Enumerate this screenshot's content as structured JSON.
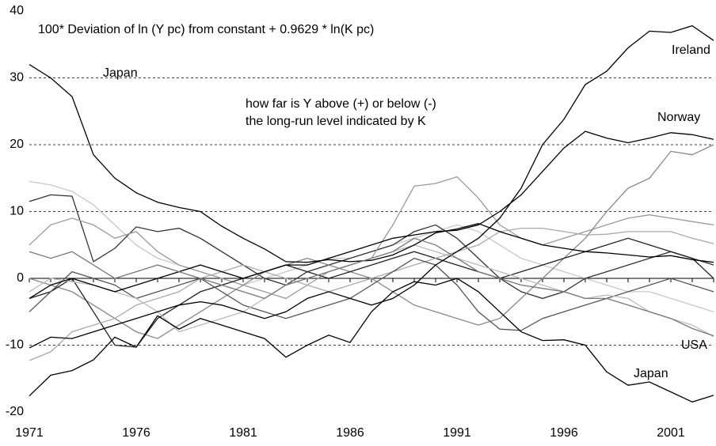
{
  "chart_data": {
    "type": "line",
    "title": "100* Deviation of ln (Y pc) from constant + 0.9629 * ln(K pc)",
    "annotation": [
      "how far is Y above (+) or below (-)",
      "the long-run level indicated by K"
    ],
    "x": [
      1971,
      1972,
      1973,
      1974,
      1975,
      1976,
      1977,
      1978,
      1979,
      1980,
      1981,
      1982,
      1983,
      1984,
      1985,
      1986,
      1987,
      1988,
      1989,
      1990,
      1991,
      1992,
      1993,
      1994,
      1995,
      1996,
      1997,
      1998,
      1999,
      2000,
      2001,
      2002,
      2003
    ],
    "xlim": [
      1971,
      2003
    ],
    "xticks": [
      1971,
      1976,
      1981,
      1986,
      1991,
      1996,
      2001
    ],
    "ylim": [
      -20,
      40
    ],
    "yticks": [
      -20,
      -10,
      0,
      10,
      20,
      30,
      40
    ],
    "grid": true,
    "series": [
      {
        "color": "#c8c8c8",
        "values": [
          14.5,
          14,
          13,
          11,
          8,
          5,
          3,
          2,
          1,
          0,
          -1,
          0,
          1,
          2,
          3,
          3,
          4,
          5,
          6,
          7,
          8,
          7,
          5,
          3,
          2,
          1,
          0,
          -1,
          -2,
          -2,
          -3,
          -4,
          -5
        ]
      },
      {
        "color": "#333333",
        "values": [
          11.5,
          12.5,
          12.3,
          2.5,
          4.5,
          7.7,
          7,
          7.5,
          6,
          4,
          2,
          0,
          -1,
          1,
          2,
          3,
          4,
          5,
          7,
          8,
          6,
          3,
          0,
          -2,
          -3,
          -2,
          0,
          1,
          2,
          3,
          4,
          3,
          2
        ]
      },
      {
        "color": "#999999",
        "values": [
          5,
          8,
          9,
          8,
          6,
          7,
          4,
          2,
          1,
          0,
          -1,
          -2,
          -3,
          -1,
          1,
          2,
          3,
          8,
          13.8,
          14.2,
          15.2,
          12,
          8,
          6,
          5,
          6,
          7,
          8,
          9,
          9.5,
          9,
          8.5,
          8
        ]
      },
      {
        "color": "#888888",
        "values": [
          0,
          -1,
          -2,
          -4,
          -6,
          -8,
          -9,
          -7,
          -5,
          -3,
          -1,
          1,
          2,
          3,
          2,
          1,
          0,
          -2,
          -4,
          -5,
          -6,
          -7,
          -6,
          -3,
          0,
          3,
          6,
          10,
          13.5,
          15,
          19,
          18.5,
          20
        ]
      },
      {
        "color": "#222222",
        "values": [
          -3,
          -2,
          0,
          -5,
          -10,
          -10.3,
          -6,
          -4,
          -2,
          -1,
          0,
          1,
          2,
          1,
          0,
          1,
          2,
          3,
          4,
          3,
          2,
          1,
          0,
          1,
          2,
          3,
          4,
          5,
          6,
          5,
          4,
          3,
          0
        ]
      },
      {
        "color": "#aaaaaa",
        "values": [
          -12.3,
          -11,
          -8,
          -7,
          -6,
          -4,
          -3,
          -2,
          0,
          1,
          2,
          1,
          0,
          -1,
          -2,
          -1,
          0,
          1,
          2,
          3,
          4,
          5,
          7,
          7.5,
          7.5,
          7,
          6.5,
          6.6,
          7,
          7,
          7,
          6,
          5.2
        ]
      },
      {
        "color": "#555555",
        "values": [
          -5,
          -2,
          1,
          0,
          -1,
          -3,
          -2,
          -1,
          0,
          -2,
          -4,
          -5,
          -6,
          -5,
          -4,
          -3,
          -1,
          1,
          3,
          2,
          -1,
          -5,
          -7.6,
          -7.8,
          -6,
          -5,
          -4,
          -3,
          -2,
          -1,
          0,
          -1,
          -2
        ]
      },
      {
        "color": "#bbbbbb",
        "values": [
          -2,
          0,
          -0.5,
          -1,
          -2,
          -3,
          -5,
          -8,
          -7,
          -6,
          -5,
          -3,
          -1,
          0,
          1,
          2,
          3,
          4,
          5,
          4,
          3,
          2,
          1,
          0,
          -1,
          -2,
          -3,
          -2.5,
          -3,
          -5,
          -6,
          -7,
          -8.7
        ]
      },
      {
        "name": "Japan",
        "color": "#000000",
        "values": [
          32,
          30,
          27.2,
          18.5,
          15,
          12.8,
          11.4,
          10.6,
          10,
          7.8,
          6,
          4.4,
          2.5,
          2.4,
          2.8,
          2.5,
          2.7,
          3.5,
          5,
          6.8,
          7.4,
          8.2,
          7,
          6,
          5,
          4.5,
          4,
          3.8,
          3.5,
          3.2,
          3.4,
          2.8,
          2.4
        ]
      },
      {
        "name": "Ireland",
        "color": "#000000",
        "values": [
          -10.4,
          -8.8,
          -9,
          -8,
          -7,
          -6,
          -5,
          -4,
          -3.5,
          -4,
          -5,
          -6,
          -5,
          -3,
          -2,
          -3,
          -4,
          -3,
          -1,
          2,
          4,
          6,
          9,
          13.5,
          20,
          23.8,
          29,
          31,
          34.5,
          37,
          36.8,
          37.8,
          35.6
        ]
      },
      {
        "name": "Norway",
        "color": "#000000",
        "values": [
          -3,
          -1,
          0,
          -1,
          -2,
          -1,
          0,
          1,
          2,
          1,
          0,
          1,
          2,
          2,
          3,
          4,
          5,
          6,
          6.5,
          7,
          7.2,
          8,
          10,
          12.5,
          16,
          19.5,
          22,
          21,
          20.3,
          21,
          21.8,
          21.5,
          20.8
        ]
      },
      {
        "name": "USA",
        "color": "#777777",
        "values": [
          4,
          3,
          4,
          2,
          0,
          1,
          2,
          1,
          0,
          -1,
          -2,
          -3,
          -1,
          0,
          1,
          2,
          3,
          4,
          6,
          5,
          3,
          1,
          0,
          -1,
          -1.5,
          -2,
          -3,
          -3,
          -4,
          -5,
          -6,
          -7.5,
          -8.6
        ]
      },
      {
        "name": "Japan",
        "color": "#000000",
        "values": [
          -17.6,
          -14.5,
          -13.8,
          -12.2,
          -8.8,
          -10.3,
          -5.6,
          -7.6,
          -6,
          -7,
          -8,
          -9,
          -11.8,
          -10,
          -8.5,
          -9.6,
          -5,
          -2,
          -0.5,
          -1,
          0,
          -2,
          -5,
          -8,
          -9.3,
          -9.2,
          -10,
          -14,
          -16,
          -15.5,
          -17,
          -18.5,
          -17.5
        ]
      }
    ]
  }
}
